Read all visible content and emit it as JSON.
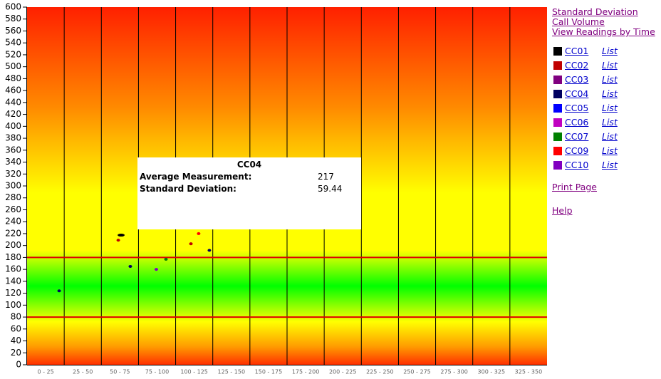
{
  "chart_data": {
    "type": "scatter",
    "categories": [
      "0 - 25",
      "25 - 50",
      "50 - 75",
      "75 - 100",
      "100 - 125",
      "125 - 150",
      "150 - 175",
      "175 - 200",
      "200 - 225",
      "225 - 250",
      "250 - 275",
      "275 - 300",
      "300 - 325",
      "325 - 350"
    ],
    "xlim": [
      0,
      350
    ],
    "ylim": [
      0,
      600
    ],
    "yticks": [
      0,
      20,
      40,
      60,
      80,
      100,
      120,
      140,
      160,
      180,
      200,
      220,
      240,
      260,
      280,
      300,
      320,
      340,
      360,
      380,
      400,
      420,
      440,
      460,
      480,
      500,
      520,
      540,
      560,
      580,
      600
    ],
    "ref_lines": [
      {
        "value": 180,
        "color": "#e00000"
      },
      {
        "value": 80,
        "color": "#e00000"
      }
    ],
    "series": [
      {
        "name": "CC01",
        "color": "#000000",
        "x": [
          63.3
        ],
        "values": [
          217.5
        ]
      },
      {
        "name": "CC02",
        "color": "#c00000",
        "x": [
          61.4,
          110.3
        ],
        "values": [
          209,
          203
        ]
      },
      {
        "name": "CC03",
        "color": "#800080",
        "x": [],
        "values": []
      },
      {
        "name": "CC04",
        "color": "#000060",
        "x": [
          21.6,
          69.5,
          122.7
        ],
        "values": [
          124,
          165,
          192
        ]
      },
      {
        "name": "CC05",
        "color": "#0000ff",
        "x": [],
        "values": []
      },
      {
        "name": "CC06",
        "color": "#c000c0",
        "x": [],
        "values": []
      },
      {
        "name": "CC07",
        "color": "#008000",
        "x": [
          93.5
        ],
        "values": [
          177
        ]
      },
      {
        "name": "CC09",
        "color": "#ff0000",
        "x": [
          115.5
        ],
        "values": [
          220
        ]
      },
      {
        "name": "CC10",
        "color": "#8000c0",
        "x": [
          87
        ],
        "values": [
          160
        ]
      }
    ],
    "tooltip": {
      "title": "CC04",
      "rows": [
        [
          "Average Measurement:",
          "217"
        ],
        [
          "Standard Deviation:",
          "59.44"
        ]
      ]
    }
  },
  "nav_links": [
    "Standard Deviation",
    "Call Volume",
    "View Readings by Time"
  ],
  "list_link": "List",
  "footer_links": [
    "Print Page",
    "Help"
  ]
}
